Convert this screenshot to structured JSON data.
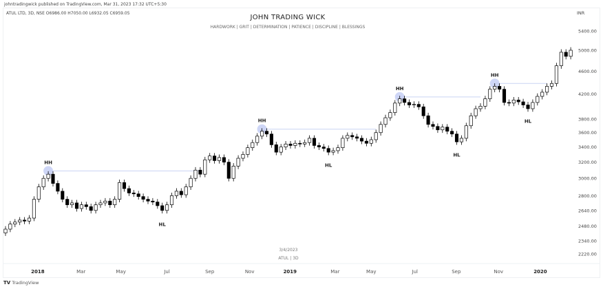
{
  "header": {
    "published": "johntradingwick published on TradingView.com, Mar 31, 2023 17:32 UTC+5:30",
    "symbol_line": "ATUL LTD, 3D, NSE  O6986.00  H7050.00  L6932.05  C6959.05",
    "title": "JOHN TRADING WICK",
    "subtitle": "HARDWORK  |  GRIT  |  DETERMINATION  |  PATIENCE  |  DISCIPLINE  |  BLESSINGS"
  },
  "watermark": {
    "date": "3/4/2023",
    "symbol": "ATUL  |  3D"
  },
  "footer": {
    "logo": "TV",
    "brand": "TradingView"
  },
  "colors": {
    "up_fill": "#ffffff",
    "down_fill": "#000000",
    "wick": "#000000",
    "marker": "#c5cff5",
    "level_line": "#c9d3f3"
  },
  "chart_data": {
    "type": "candlestick",
    "currency": "INR",
    "scale": "log",
    "interval": "3D",
    "ylim": [
      2150,
      5600
    ],
    "y_ticks": [
      "5400.00",
      "5000.00",
      "4600.00",
      "4200.00",
      "3800.00",
      "3600.00",
      "3400.00",
      "3200.00",
      "3000.00",
      "2800.00",
      "2640.00",
      "2480.00",
      "2340.00",
      "2220.00"
    ],
    "x_ticks": [
      {
        "label": "2018",
        "index": 6.8,
        "bold": true
      },
      {
        "label": "Mar",
        "index": 15.9
      },
      {
        "label": "May",
        "index": 24.3
      },
      {
        "label": "Jul",
        "index": 34
      },
      {
        "label": "Sep",
        "index": 43
      },
      {
        "label": "Nov",
        "index": 51.4
      },
      {
        "label": "2019",
        "index": 59.9,
        "bold": true
      },
      {
        "label": "Mar",
        "index": 69.4
      },
      {
        "label": "May",
        "index": 77
      },
      {
        "label": "Jul",
        "index": 86.2
      },
      {
        "label": "Sep",
        "index": 94.9
      },
      {
        "label": "Nov",
        "index": 103.8
      },
      {
        "label": "2020",
        "index": 112.6,
        "bold": true
      }
    ],
    "close": [
      2450,
      2500,
      2520,
      2540,
      2530,
      2560,
      2760,
      2900,
      3000,
      3050,
      2940,
      2850,
      2760,
      2700,
      2720,
      2660,
      2700,
      2680,
      2640,
      2700,
      2720,
      2740,
      2700,
      2760,
      2950,
      2880,
      2830,
      2820,
      2790,
      2760,
      2740,
      2730,
      2690,
      2640,
      2700,
      2800,
      2850,
      2810,
      2900,
      3000,
      3100,
      3050,
      3230,
      3280,
      3220,
      3260,
      3200,
      3000,
      3150,
      3250,
      3300,
      3390,
      3460,
      3550,
      3620,
      3580,
      3430,
      3330,
      3400,
      3440,
      3420,
      3450,
      3440,
      3460,
      3520,
      3420,
      3400,
      3380,
      3330,
      3350,
      3390,
      3520,
      3560,
      3540,
      3520,
      3480,
      3450,
      3500,
      3600,
      3720,
      3820,
      3900,
      4050,
      4120,
      4060,
      4020,
      4030,
      3990,
      3850,
      3720,
      3690,
      3640,
      3680,
      3620,
      3580,
      3470,
      3520,
      3700,
      3850,
      3960,
      4000,
      4120,
      4280,
      4330,
      4280,
      4060,
      4050,
      4100,
      4070,
      4020,
      3960,
      4060,
      4160,
      4230,
      4330,
      4380,
      4700,
      4960,
      4880,
      5000
    ],
    "annotations": [
      {
        "label": "HH",
        "index": 9,
        "price": 3090,
        "level_to_index": 41
      },
      {
        "label": "HL",
        "index": 33,
        "price": 2600
      },
      {
        "label": "HH",
        "index": 54,
        "price": 3650,
        "level_to_index": 78
      },
      {
        "label": "HL",
        "index": 68,
        "price": 3290
      },
      {
        "label": "HH",
        "index": 83,
        "price": 4150,
        "level_to_index": 100
      },
      {
        "label": "HL",
        "index": 95,
        "price": 3430
      },
      {
        "label": "HH",
        "index": 103,
        "price": 4380,
        "level_to_index": 114
      },
      {
        "label": "HL",
        "index": 110,
        "price": 3920
      }
    ]
  }
}
